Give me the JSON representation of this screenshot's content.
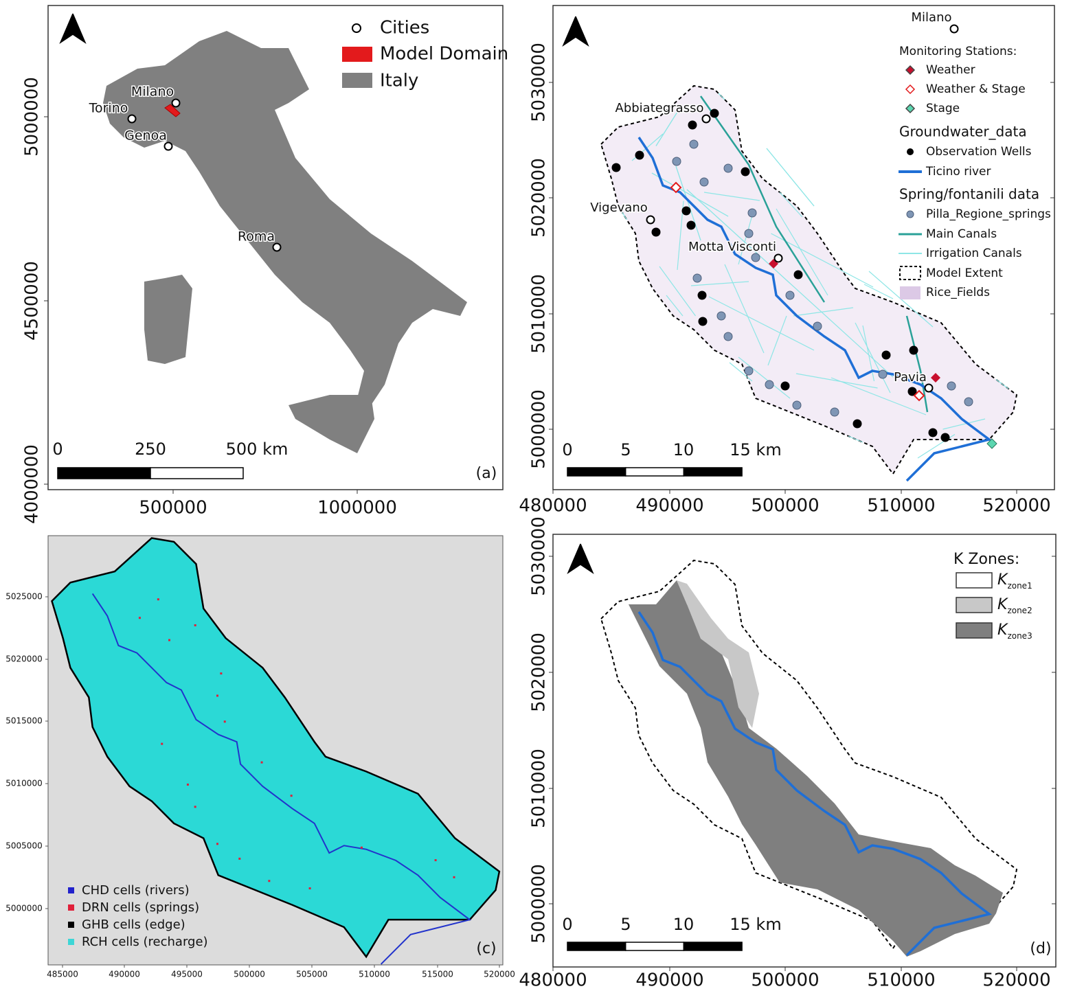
{
  "panel_a": {
    "label": "(a)",
    "legend": [
      "Cities",
      "Model Domain",
      "Italy"
    ],
    "cities": [
      "Milano",
      "Torino",
      "Genoa",
      "Roma"
    ],
    "scale_bar": [
      "0",
      "250",
      "500 km"
    ],
    "x_ticks": [
      "500000",
      "1000000"
    ],
    "y_ticks": [
      "5000000",
      "4500000",
      "4000000"
    ]
  },
  "panel_b": {
    "places": [
      "Milano",
      "Abbiategrasso",
      "Vigevano",
      "Motta Visconti",
      "Pavia"
    ],
    "legend": {
      "monitoring_title": "Monitoring Stations:",
      "monitoring": [
        "Weather",
        "Weather & Stage",
        "Stage"
      ],
      "groundwater_title": "Groundwater_data",
      "groundwater": [
        "Observation Wells",
        "Ticino river"
      ],
      "spring_title": "Spring/fontanili data",
      "spring": [
        "Pilla_Regione_springs",
        "Main Canals",
        "Irrigation Canals",
        "Model Extent",
        "Rice_Fields"
      ]
    },
    "scale_bar": [
      "0",
      "5",
      "10",
      "15 km"
    ],
    "x_ticks": [
      "480000",
      "490000",
      "500000",
      "510000",
      "520000"
    ],
    "y_ticks": [
      "5030000",
      "5020000",
      "5010000",
      "5000000"
    ]
  },
  "panel_c": {
    "label": "(c)",
    "legend": [
      "CHD cells (rivers)",
      "DRN cells (springs)",
      "GHB cells (edge)",
      "RCH cells (recharge)"
    ],
    "x_ticks": [
      "485000",
      "490000",
      "495000",
      "500000",
      "505000",
      "510000",
      "515000",
      "520000"
    ],
    "y_ticks": [
      "5025000",
      "5020000",
      "5015000",
      "5010000",
      "5005000",
      "5000000"
    ]
  },
  "panel_d": {
    "label": "(d)",
    "legend_title": "K Zones:",
    "legend": [
      {
        "symbol": "K",
        "subscript": "zone1"
      },
      {
        "symbol": "K",
        "subscript": "zone2"
      },
      {
        "symbol": "K",
        "subscript": "zone3"
      }
    ],
    "scale_bar": [
      "0",
      "5",
      "10",
      "15 km"
    ],
    "x_ticks": [
      "480000",
      "490000",
      "500000",
      "510000",
      "520000"
    ],
    "y_ticks": [
      "5030000",
      "5020000",
      "5010000",
      "5000000"
    ]
  }
}
